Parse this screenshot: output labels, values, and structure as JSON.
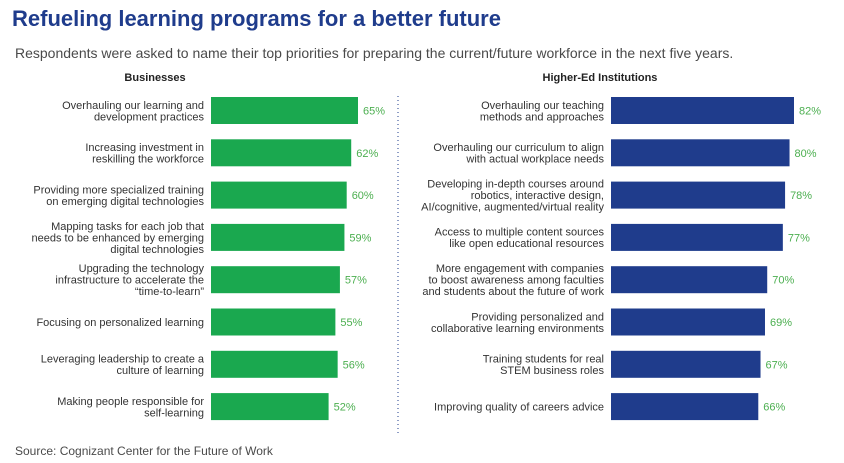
{
  "header": {
    "title": "Refueling learning programs for a better future",
    "subtitle": "Respondents were asked to name their top priorities for preparing the current/future workforce in the next five years."
  },
  "footer": {
    "source": "Source: Cognizant Center for the Future of Work"
  },
  "chart_data": [
    {
      "type": "bar",
      "orientation": "horizontal",
      "title": "Businesses",
      "color": "#1aa84f",
      "value_label_color": "#4caf50",
      "categories": [
        "Overhauling our learning and development practices",
        "Increasing investment in reskilling the workforce",
        "Providing more specialized training on emerging digital technologies",
        "Mapping tasks for each job that needs to be enhanced by emerging digital technologies",
        "Upgrading the technology infrastructure to accelerate the “time-to-learn”",
        "Focusing on personalized learning",
        "Leveraging leadership to create a culture of learning",
        "Making people responsible for self-learning"
      ],
      "category_lines": [
        [
          "Overhauling our learning and",
          "development practices"
        ],
        [
          "Increasing investment in",
          "reskilling the workforce"
        ],
        [
          "Providing more specialized training",
          "on emerging digital technologies"
        ],
        [
          "Mapping tasks for each job that",
          "needs to be enhanced by emerging",
          "digital technologies"
        ],
        [
          "Upgrading the technology",
          "infrastructure to accelerate the",
          "“time-to-learn”"
        ],
        [
          "Focusing on personalized learning"
        ],
        [
          "Leveraging leadership to create a",
          "culture of learning"
        ],
        [
          "Making people responsible for",
          "self-learning"
        ]
      ],
      "values": [
        65,
        62,
        60,
        59,
        57,
        55,
        56,
        52
      ],
      "value_labels": [
        "65%",
        "62%",
        "60%",
        "59%",
        "57%",
        "55%",
        "56%",
        "52%"
      ]
    },
    {
      "type": "bar",
      "orientation": "horizontal",
      "title": "Higher-Ed Institutions",
      "color": "#1f3c8c",
      "value_label_color": "#4caf50",
      "categories": [
        "Overhauling our teaching methods and approaches",
        "Overhauling our curriculum to align with actual workplace needs",
        "Developing in-depth courses around robotics, interactive design, AI/cognitive, augmented/virtual reality",
        "Access to multiple content sources like open educational resources",
        "More engagement with companies to boost awareness among faculties and students about the future of work",
        "Providing personalized and collaborative learning environments",
        "Training students for real STEM business roles",
        "Improving quality of careers advice"
      ],
      "category_lines": [
        [
          "Overhauling our teaching",
          "methods and approaches"
        ],
        [
          "Overhauling our curriculum to align",
          "with actual workplace needs"
        ],
        [
          "Developing in-depth courses around",
          "robotics, interactive design,",
          "AI/cognitive, augmented/virtual reality"
        ],
        [
          "Access to multiple content sources",
          "like open educational resources"
        ],
        [
          "More engagement with companies",
          "to boost awareness among faculties",
          "and students about the future of work"
        ],
        [
          "Providing personalized and",
          "collaborative learning environments"
        ],
        [
          "Training students for real",
          "STEM business roles"
        ],
        [
          "Improving quality of careers advice"
        ]
      ],
      "values": [
        82,
        80,
        78,
        77,
        70,
        69,
        67,
        66
      ],
      "value_labels": [
        "82%",
        "80%",
        "78%",
        "77%",
        "70%",
        "69%",
        "67%",
        "66%"
      ]
    }
  ]
}
